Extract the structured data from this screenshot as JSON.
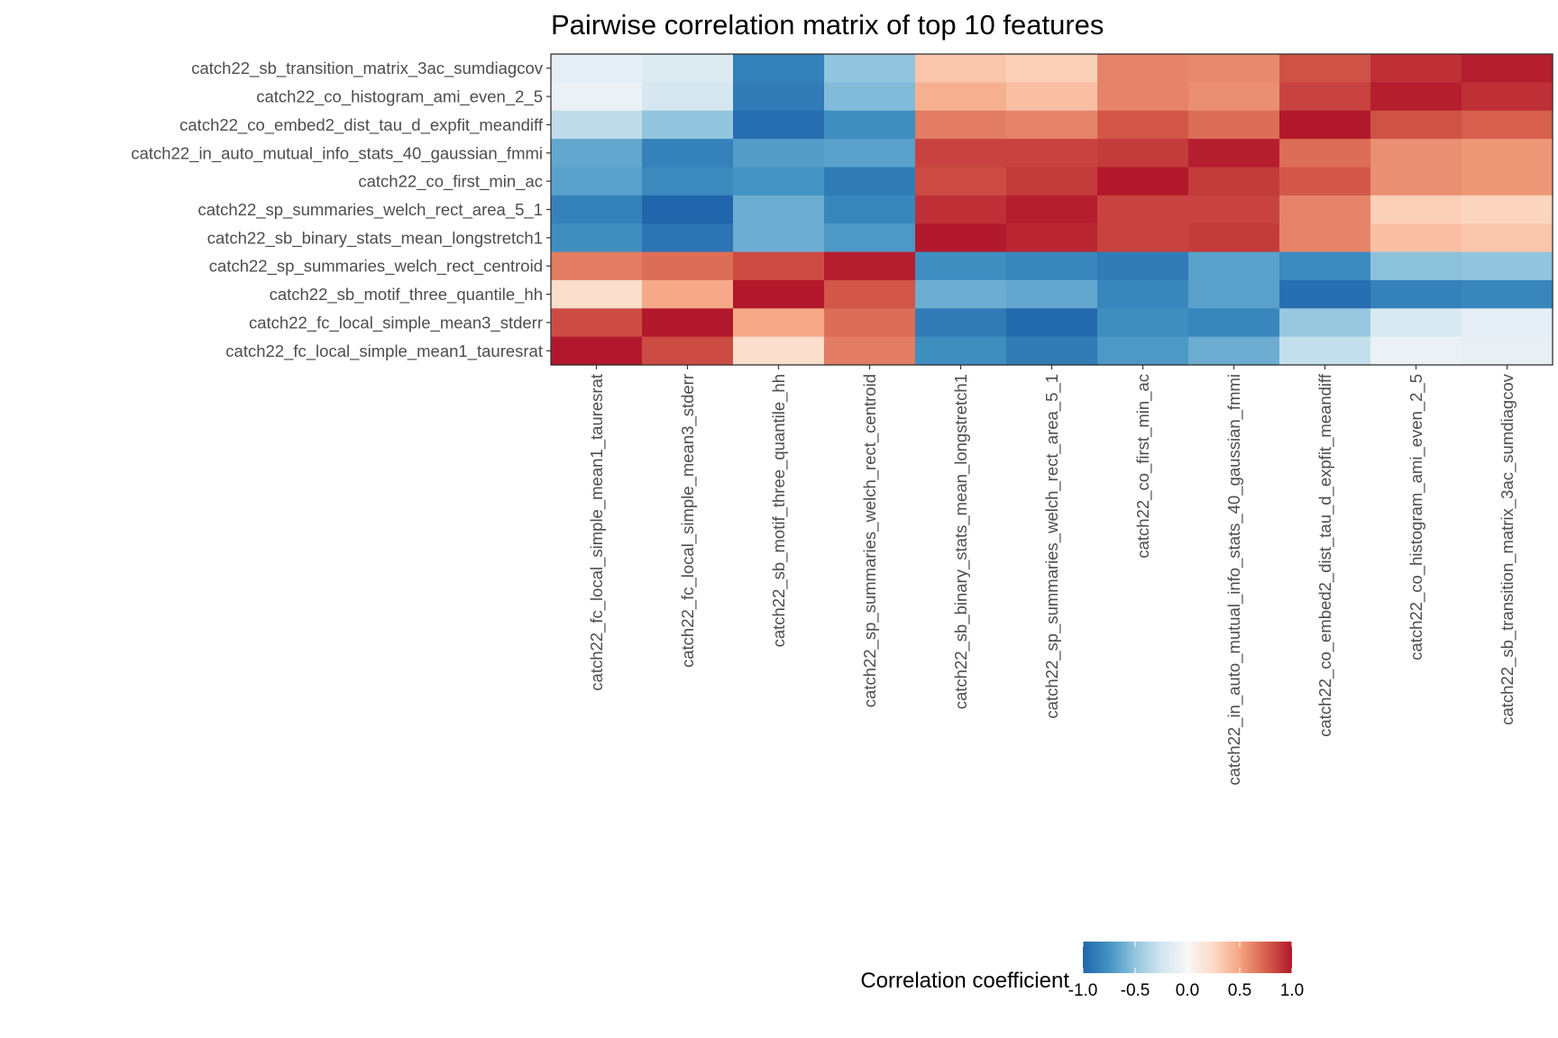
{
  "chart_data": {
    "type": "heatmap",
    "title": "Pairwise correlation matrix of top 10 features",
    "xlabel": "",
    "ylabel": "",
    "x_categories": [
      "catch22_fc_local_simple_mean1_tauresrat",
      "catch22_fc_local_simple_mean3_stderr",
      "catch22_sb_motif_three_quantile_hh",
      "catch22_sp_summaries_welch_rect_centroid",
      "catch22_sb_binary_stats_mean_longstretch1",
      "catch22_sp_summaries_welch_rect_area_5_1",
      "catch22_co_first_min_ac",
      "catch22_in_auto_mutual_info_stats_40_gaussian_fmmi",
      "catch22_co_embed2_dist_tau_d_expfit_meandiff",
      "catch22_co_histogram_ami_even_2_5",
      "catch22_sb_transition_matrix_3ac_sumdiagcov"
    ],
    "y_categories": [
      "catch22_sb_transition_matrix_3ac_sumdiagcov",
      "catch22_co_histogram_ami_even_2_5",
      "catch22_co_embed2_dist_tau_d_expfit_meandiff",
      "catch22_in_auto_mutual_info_stats_40_gaussian_fmmi",
      "catch22_co_first_min_ac",
      "catch22_sp_summaries_welch_rect_area_5_1",
      "catch22_sb_binary_stats_mean_longstretch1",
      "catch22_sp_summaries_welch_rect_centroid",
      "catch22_sb_motif_three_quantile_hh",
      "catch22_fc_local_simple_mean3_stderr",
      "catch22_fc_local_simple_mean1_tauresrat"
    ],
    "values": [
      [
        -0.12,
        -0.18,
        -0.85,
        -0.5,
        0.35,
        0.3,
        0.62,
        0.6,
        0.8,
        0.92,
        0.98
      ],
      [
        -0.08,
        -0.22,
        -0.88,
        -0.55,
        0.45,
        0.38,
        0.62,
        0.58,
        0.85,
        0.98,
        0.92
      ],
      [
        -0.32,
        -0.5,
        -0.95,
        -0.78,
        0.65,
        0.62,
        0.78,
        0.7,
        1.0,
        0.8,
        0.75
      ],
      [
        -0.65,
        -0.85,
        -0.7,
        -0.68,
        0.85,
        0.85,
        0.88,
        0.98,
        0.7,
        0.58,
        0.55
      ],
      [
        -0.68,
        -0.8,
        -0.75,
        -0.88,
        0.82,
        0.88,
        1.0,
        0.88,
        0.78,
        0.58,
        0.55
      ],
      [
        -0.85,
        -1.0,
        -0.62,
        -0.82,
        0.92,
        0.98,
        0.85,
        0.85,
        0.62,
        0.3,
        0.28
      ],
      [
        -0.78,
        -0.92,
        -0.62,
        -0.72,
        1.0,
        0.95,
        0.85,
        0.88,
        0.62,
        0.38,
        0.35
      ],
      [
        0.65,
        0.7,
        0.82,
        0.98,
        -0.78,
        -0.82,
        -0.88,
        -0.68,
        -0.8,
        -0.52,
        -0.5
      ],
      [
        0.22,
        0.48,
        1.0,
        0.78,
        -0.62,
        -0.65,
        -0.82,
        -0.68,
        -0.95,
        -0.85,
        -0.82
      ],
      [
        0.82,
        1.0,
        0.48,
        0.7,
        -0.88,
        -0.98,
        -0.78,
        -0.82,
        -0.48,
        -0.2,
        -0.12
      ],
      [
        1.0,
        0.82,
        0.22,
        0.65,
        -0.78,
        -0.88,
        -0.72,
        -0.62,
        -0.3,
        -0.08,
        -0.1
      ]
    ],
    "color_scale": {
      "min": -1.0,
      "max": 1.0,
      "colors": [
        "#2166ac",
        "#4393c3",
        "#92c5de",
        "#d1e5f0",
        "#f7f7f7",
        "#fddbc7",
        "#f4a582",
        "#d6604d",
        "#b2182b"
      ]
    },
    "legend": {
      "title": "Correlation coefficient",
      "position": "bottom",
      "ticks": [
        "-1.0",
        "-0.5",
        "0.0",
        "0.5",
        "1.0"
      ],
      "tick_values": [
        -1.0,
        -0.5,
        0.0,
        0.5,
        1.0
      ]
    },
    "grid": false
  }
}
